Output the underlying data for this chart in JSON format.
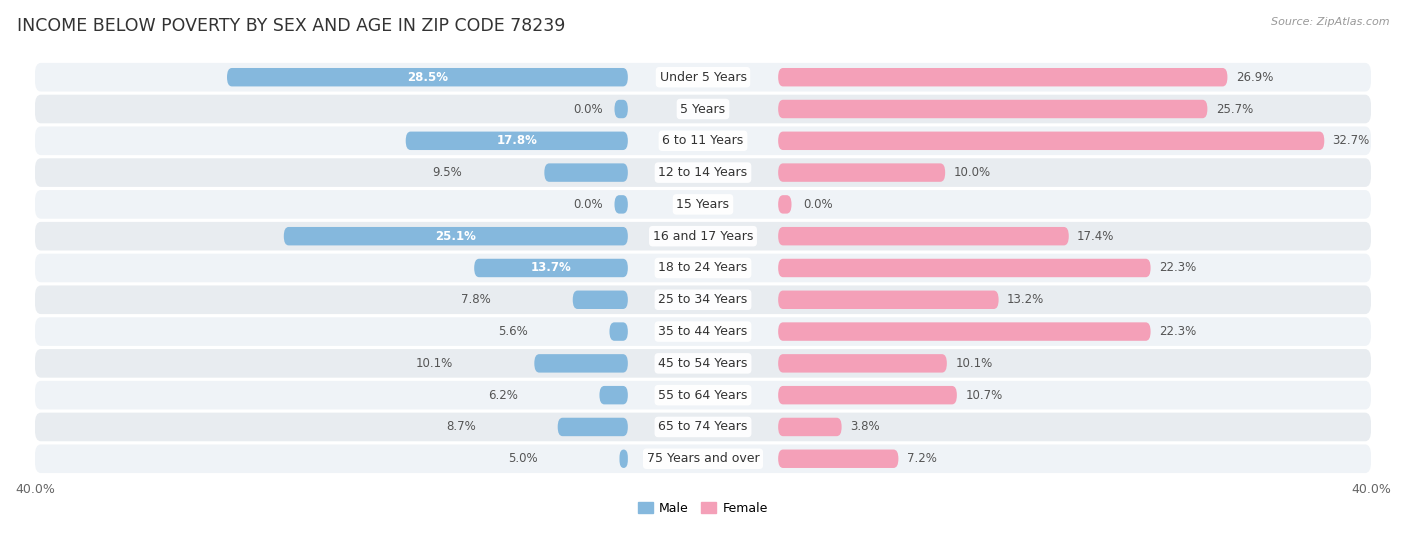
{
  "title": "INCOME BELOW POVERTY BY SEX AND AGE IN ZIP CODE 78239",
  "source": "Source: ZipAtlas.com",
  "categories": [
    "Under 5 Years",
    "5 Years",
    "6 to 11 Years",
    "12 to 14 Years",
    "15 Years",
    "16 and 17 Years",
    "18 to 24 Years",
    "25 to 34 Years",
    "35 to 44 Years",
    "45 to 54 Years",
    "55 to 64 Years",
    "65 to 74 Years",
    "75 Years and over"
  ],
  "male_values": [
    28.5,
    0.0,
    17.8,
    9.5,
    0.0,
    25.1,
    13.7,
    7.8,
    5.6,
    10.1,
    6.2,
    8.7,
    5.0
  ],
  "female_values": [
    26.9,
    25.7,
    32.7,
    10.0,
    0.0,
    17.4,
    22.3,
    13.2,
    22.3,
    10.1,
    10.7,
    3.8,
    7.2
  ],
  "male_color": "#85b8dd",
  "female_color": "#f4a0b8",
  "axis_max": 40.0,
  "row_bg_colors": [
    "#eff3f7",
    "#e8ecf0"
  ],
  "bar_height": 0.58,
  "title_fontsize": 12.5,
  "label_fontsize": 8.5,
  "tick_fontsize": 9,
  "category_fontsize": 9,
  "white_text_threshold": 12.0
}
